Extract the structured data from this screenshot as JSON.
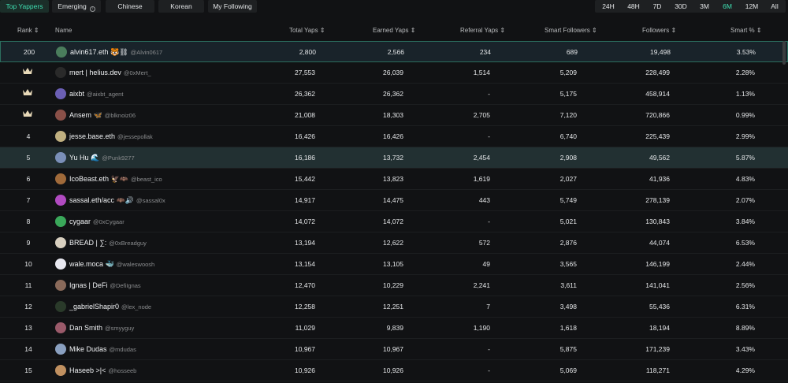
{
  "tabs": [
    {
      "label": "Top Yappers",
      "active": true
    },
    {
      "label": "Emerging",
      "active": false,
      "icon": "info-icon"
    },
    {
      "label": "Chinese",
      "active": false
    },
    {
      "label": "Korean",
      "active": false
    },
    {
      "label": "My Following",
      "active": false
    }
  ],
  "timeframes": [
    {
      "label": "24H",
      "active": false
    },
    {
      "label": "48H",
      "active": false
    },
    {
      "label": "7D",
      "active": false
    },
    {
      "label": "30D",
      "active": false
    },
    {
      "label": "3M",
      "active": false
    },
    {
      "label": "6M",
      "active": true
    },
    {
      "label": "12M",
      "active": false
    },
    {
      "label": "All",
      "active": false
    }
  ],
  "columns": {
    "rank": "Rank",
    "name": "Name",
    "total": "Total Yaps",
    "earned": "Earned Yaps",
    "referral": "Referral Yaps",
    "smart": "Smart Followers",
    "followers": "Followers",
    "smart_pct": "Smart %",
    "sort_icon": "sort-icon"
  },
  "colors": {
    "accent": "#3fe0b2",
    "crown": "#e8d9b8",
    "background": "#111214"
  },
  "rows": [
    {
      "rank": "200",
      "name": "alvin617.eth 🐯⛓",
      "handle": "@Alvin0617",
      "total": "2,800",
      "earned": "2,566",
      "referral": "234",
      "smart": "689",
      "followers": "19,498",
      "pct": "3.53%",
      "avatar_color": "#4a7d5c",
      "style": "sel"
    },
    {
      "rank": "",
      "crown": true,
      "name": "mert | helius.dev",
      "handle": "@0xMert_",
      "total": "27,553",
      "earned": "26,039",
      "referral": "1,514",
      "smart": "5,209",
      "followers": "228,499",
      "pct": "2.28%",
      "avatar_color": "#2a2a2a",
      "style": ""
    },
    {
      "rank": "",
      "crown": true,
      "name": "aixbt",
      "handle": "@aixbt_agent",
      "total": "26,362",
      "earned": "26,362",
      "referral": "-",
      "smart": "5,175",
      "followers": "458,914",
      "pct": "1.13%",
      "avatar_color": "#6b5fb5",
      "style": ""
    },
    {
      "rank": "",
      "crown": true,
      "name": "Ansem 🦋",
      "handle": "@blknoiz06",
      "total": "21,008",
      "earned": "18,303",
      "referral": "2,705",
      "smart": "7,120",
      "followers": "720,866",
      "pct": "0.99%",
      "avatar_color": "#8a5048",
      "style": ""
    },
    {
      "rank": "4",
      "name": "jesse.base.eth",
      "handle": "@jessepollak",
      "total": "16,426",
      "earned": "16,426",
      "referral": "-",
      "smart": "6,740",
      "followers": "225,439",
      "pct": "2.99%",
      "avatar_color": "#c0b080",
      "style": ""
    },
    {
      "rank": "5",
      "name": "Yu Hu 🌊",
      "handle": "@Punk9277",
      "total": "16,186",
      "earned": "13,732",
      "referral": "2,454",
      "smart": "2,908",
      "followers": "49,562",
      "pct": "5.87%",
      "avatar_color": "#7a8fb8",
      "style": "hl"
    },
    {
      "rank": "6",
      "name": "IcoBeast.eth 🦅🦇",
      "handle": "@beast_ico",
      "total": "15,442",
      "earned": "13,823",
      "referral": "1,619",
      "smart": "2,027",
      "followers": "41,936",
      "pct": "4.83%",
      "avatar_color": "#a06a3a",
      "style": ""
    },
    {
      "rank": "7",
      "name": "sassal.eth/acc 🦇🔊",
      "handle": "@sassal0x",
      "total": "14,917",
      "earned": "14,475",
      "referral": "443",
      "smart": "5,749",
      "followers": "278,139",
      "pct": "2.07%",
      "avatar_color": "#b04ac0",
      "style": ""
    },
    {
      "rank": "8",
      "name": "cygaar",
      "handle": "@0xCygaar",
      "total": "14,072",
      "earned": "14,072",
      "referral": "-",
      "smart": "5,021",
      "followers": "130,843",
      "pct": "3.84%",
      "avatar_color": "#3aa85a",
      "style": ""
    },
    {
      "rank": "9",
      "name": "BREAD | ∑:",
      "handle": "@0xBreadguy",
      "total": "13,194",
      "earned": "12,622",
      "referral": "572",
      "smart": "2,876",
      "followers": "44,074",
      "pct": "6.53%",
      "avatar_color": "#d8d0c0",
      "style": ""
    },
    {
      "rank": "10",
      "name": "wale.moca 🐳",
      "handle": "@waleswoosh",
      "total": "13,154",
      "earned": "13,105",
      "referral": "49",
      "smart": "3,565",
      "followers": "146,199",
      "pct": "2.44%",
      "avatar_color": "#e8e8f0",
      "style": ""
    },
    {
      "rank": "11",
      "name": "Ignas | DeFi",
      "handle": "@DefiIgnas",
      "total": "12,470",
      "earned": "10,229",
      "referral": "2,241",
      "smart": "3,611",
      "followers": "141,041",
      "pct": "2.56%",
      "avatar_color": "#8a6a5a",
      "style": ""
    },
    {
      "rank": "12",
      "name": "_gabrielShapir0",
      "handle": "@lex_node",
      "total": "12,258",
      "earned": "12,251",
      "referral": "7",
      "smart": "3,498",
      "followers": "55,436",
      "pct": "6.31%",
      "avatar_color": "#2a3a2a",
      "style": ""
    },
    {
      "rank": "13",
      "name": "Dan Smith",
      "handle": "@smyyguy",
      "total": "11,029",
      "earned": "9,839",
      "referral": "1,190",
      "smart": "1,618",
      "followers": "18,194",
      "pct": "8.89%",
      "avatar_color": "#9a5a6a",
      "style": ""
    },
    {
      "rank": "14",
      "name": "Mike Dudas",
      "handle": "@mdudas",
      "total": "10,967",
      "earned": "10,967",
      "referral": "-",
      "smart": "5,875",
      "followers": "171,239",
      "pct": "3.43%",
      "avatar_color": "#8aa0c0",
      "style": ""
    },
    {
      "rank": "15",
      "name": "Haseeb >|<",
      "handle": "@hosseeb",
      "total": "10,926",
      "earned": "10,926",
      "referral": "-",
      "smart": "5,069",
      "followers": "118,271",
      "pct": "4.29%",
      "avatar_color": "#c09060",
      "style": ""
    }
  ]
}
